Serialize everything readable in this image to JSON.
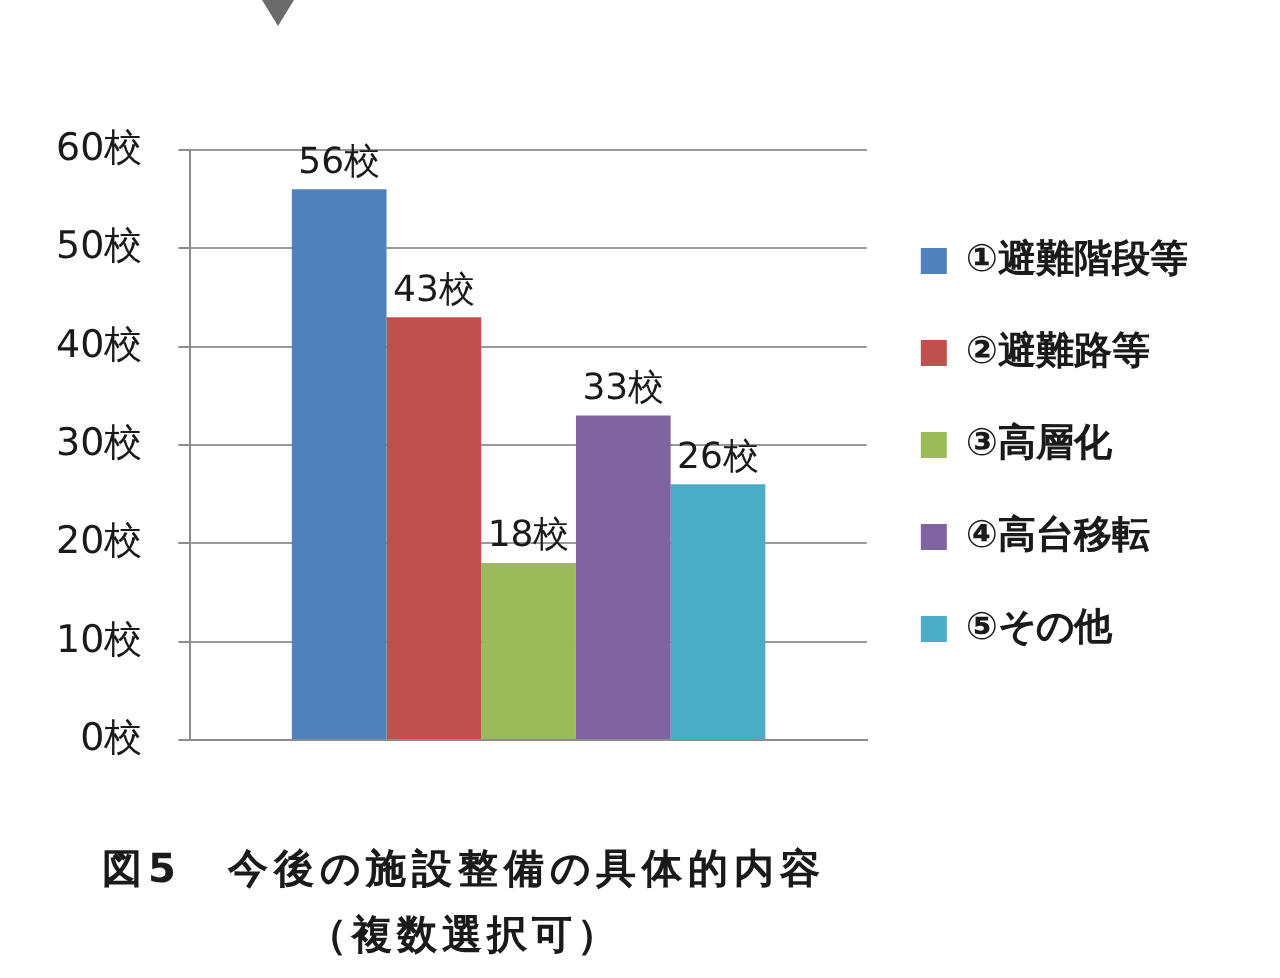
{
  "chart_data": {
    "type": "bar",
    "title": "図5　今後の施設整備の具体的内容",
    "subtitle": "（複数選択可）",
    "categories": [
      null
    ],
    "series": [
      {
        "name": "①避難階段等",
        "color": "#4f81bd",
        "values": [
          56
        ],
        "value_labels": [
          "56校"
        ]
      },
      {
        "name": "②避難路等",
        "color": "#c0504d",
        "values": [
          43
        ],
        "value_labels": [
          "43校"
        ]
      },
      {
        "name": "③高層化",
        "color": "#9bbb59",
        "values": [
          18
        ],
        "value_labels": [
          "18校"
        ]
      },
      {
        "name": "④高台移転",
        "color": "#8064a2",
        "values": [
          33
        ],
        "value_labels": [
          "33校"
        ]
      },
      {
        "name": "⑤その他",
        "color": "#4bacc6",
        "values": [
          26
        ],
        "value_labels": [
          "26校"
        ]
      }
    ],
    "ylim": [
      0,
      60
    ],
    "yticks": [
      {
        "value": 0,
        "label": "0校"
      },
      {
        "value": 10,
        "label": "10校"
      },
      {
        "value": 20,
        "label": "20校"
      },
      {
        "value": 30,
        "label": "30校"
      },
      {
        "value": 40,
        "label": "40校"
      },
      {
        "value": 50,
        "label": "50校"
      },
      {
        "value": 60,
        "label": "60校"
      }
    ],
    "grid": "y",
    "legend": "right",
    "tick_labels": "y"
  }
}
